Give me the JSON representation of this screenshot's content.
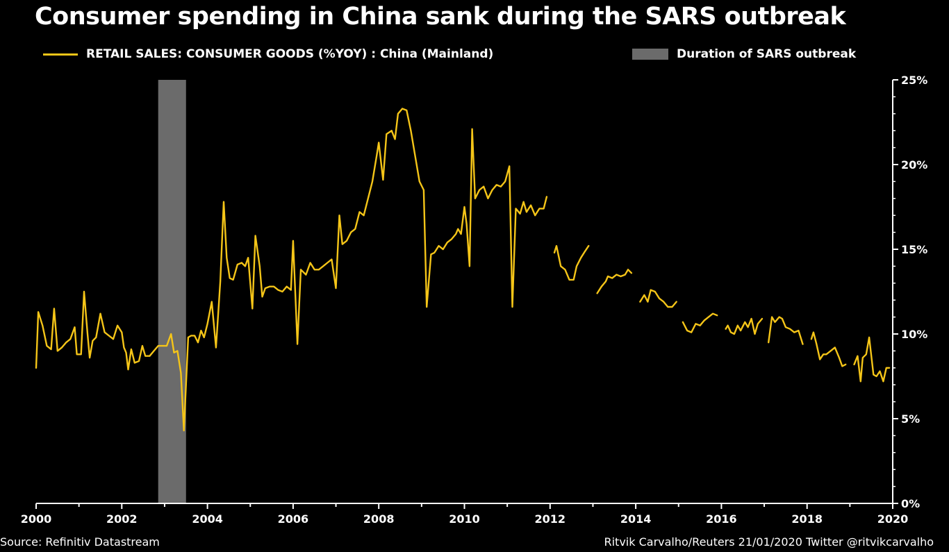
{
  "title": "Consumer spending in China sank during the SARS outbreak",
  "legend": {
    "series_label": "RETAIL SALES: CONSUMER GOODS (%YOY) : China (Mainland)",
    "shade_label": "Duration of SARS outbreak"
  },
  "footer": {
    "source": "Source: Refinitiv Datastream",
    "credit": "Ritvik Carvalho/Reuters 21/01/2020 Twitter @ritvikcarvalho"
  },
  "colors": {
    "line": "#f5c518",
    "shade": "#6b6b6b",
    "axis": "#ffffff",
    "background": "#000000"
  },
  "chart_data": {
    "type": "line",
    "x_label_ticks": [
      "2000",
      "2002",
      "2004",
      "2006",
      "2008",
      "2010",
      "2012",
      "2014",
      "2016",
      "2018",
      "2020"
    ],
    "y_tick_labels": [
      "0%",
      "5%",
      "10%",
      "15%",
      "20%",
      "25%"
    ],
    "xlim": [
      2000,
      2020
    ],
    "ylim": [
      0,
      25
    ],
    "shaded_region": {
      "label": "Duration of SARS outbreak",
      "x_start": 2002.85,
      "x_end": 2003.5
    },
    "series": [
      {
        "name": "RETAIL SALES: CONSUMER GOODS (%YOY) : China (Mainland)",
        "segments": [
          [
            [
              2000.0,
              8.0
            ],
            [
              2000.05,
              11.3
            ],
            [
              2000.15,
              10.5
            ],
            [
              2000.25,
              9.3
            ],
            [
              2000.35,
              9.1
            ],
            [
              2000.42,
              11.5
            ],
            [
              2000.5,
              9.0
            ],
            [
              2000.6,
              9.2
            ],
            [
              2000.7,
              9.5
            ],
            [
              2000.8,
              9.7
            ],
            [
              2000.9,
              10.4
            ],
            [
              2000.95,
              8.8
            ],
            [
              2001.05,
              8.8
            ],
            [
              2001.12,
              12.5
            ],
            [
              2001.2,
              10.0
            ],
            [
              2001.25,
              8.6
            ],
            [
              2001.32,
              9.6
            ],
            [
              2001.4,
              9.8
            ],
            [
              2001.5,
              11.2
            ],
            [
              2001.6,
              10.1
            ],
            [
              2001.7,
              9.9
            ],
            [
              2001.8,
              9.7
            ],
            [
              2001.9,
              10.5
            ],
            [
              2002.0,
              10.1
            ],
            [
              2002.05,
              9.2
            ],
            [
              2002.1,
              8.9
            ],
            [
              2002.15,
              7.9
            ],
            [
              2002.22,
              9.1
            ],
            [
              2002.3,
              8.3
            ],
            [
              2002.4,
              8.4
            ],
            [
              2002.48,
              9.3
            ],
            [
              2002.55,
              8.7
            ],
            [
              2002.65,
              8.7
            ],
            [
              2002.75,
              9.0
            ],
            [
              2002.85,
              9.3
            ],
            [
              2002.95,
              9.3
            ],
            [
              2003.05,
              9.3
            ],
            [
              2003.15,
              10.0
            ],
            [
              2003.22,
              8.9
            ],
            [
              2003.3,
              9.0
            ],
            [
              2003.38,
              7.7
            ],
            [
              2003.45,
              4.3
            ],
            [
              2003.55,
              9.8
            ],
            [
              2003.62,
              9.9
            ],
            [
              2003.7,
              9.9
            ],
            [
              2003.78,
              9.5
            ],
            [
              2003.85,
              10.2
            ],
            [
              2003.92,
              9.8
            ],
            [
              2004.0,
              10.6
            ],
            [
              2004.1,
              11.9
            ],
            [
              2004.2,
              9.2
            ],
            [
              2004.3,
              13.1
            ],
            [
              2004.38,
              17.8
            ],
            [
              2004.45,
              14.5
            ],
            [
              2004.52,
              13.3
            ],
            [
              2004.6,
              13.2
            ],
            [
              2004.7,
              14.1
            ],
            [
              2004.8,
              14.2
            ],
            [
              2004.88,
              14.0
            ],
            [
              2004.95,
              14.5
            ],
            [
              2005.05,
              11.5
            ],
            [
              2005.12,
              15.8
            ],
            [
              2005.22,
              14.0
            ],
            [
              2005.28,
              12.2
            ],
            [
              2005.35,
              12.7
            ],
            [
              2005.45,
              12.8
            ],
            [
              2005.55,
              12.8
            ],
            [
              2005.65,
              12.6
            ],
            [
              2005.75,
              12.5
            ],
            [
              2005.85,
              12.8
            ],
            [
              2005.95,
              12.6
            ],
            [
              2006.0,
              15.5
            ],
            [
              2006.1,
              9.4
            ],
            [
              2006.18,
              13.8
            ],
            [
              2006.3,
              13.5
            ],
            [
              2006.4,
              14.2
            ],
            [
              2006.5,
              13.8
            ],
            [
              2006.6,
              13.8
            ],
            [
              2006.7,
              14.0
            ],
            [
              2006.8,
              14.2
            ],
            [
              2006.9,
              14.4
            ],
            [
              2007.0,
              12.7
            ],
            [
              2007.08,
              17.0
            ],
            [
              2007.15,
              15.3
            ],
            [
              2007.25,
              15.5
            ],
            [
              2007.35,
              16.0
            ],
            [
              2007.45,
              16.2
            ],
            [
              2007.55,
              17.2
            ],
            [
              2007.65,
              17.0
            ],
            [
              2007.75,
              18.0
            ],
            [
              2007.85,
              19.0
            ],
            [
              2007.95,
              20.5
            ],
            [
              2008.0,
              21.3
            ],
            [
              2008.1,
              19.1
            ],
            [
              2008.18,
              21.8
            ],
            [
              2008.3,
              22.0
            ],
            [
              2008.38,
              21.5
            ],
            [
              2008.45,
              23.0
            ],
            [
              2008.55,
              23.3
            ],
            [
              2008.65,
              23.2
            ],
            [
              2008.75,
              22.0
            ],
            [
              2008.85,
              20.5
            ],
            [
              2008.95,
              19.0
            ],
            [
              2009.05,
              18.5
            ],
            [
              2009.12,
              11.6
            ],
            [
              2009.22,
              14.7
            ],
            [
              2009.3,
              14.8
            ],
            [
              2009.4,
              15.2
            ],
            [
              2009.5,
              15.0
            ],
            [
              2009.6,
              15.4
            ],
            [
              2009.7,
              15.6
            ],
            [
              2009.8,
              15.9
            ],
            [
              2009.85,
              16.2
            ],
            [
              2009.92,
              15.9
            ],
            [
              2010.0,
              17.5
            ],
            [
              2010.05,
              16.5
            ],
            [
              2010.12,
              14.0
            ],
            [
              2010.18,
              22.1
            ],
            [
              2010.25,
              18.0
            ],
            [
              2010.35,
              18.5
            ],
            [
              2010.45,
              18.7
            ],
            [
              2010.55,
              18.0
            ],
            [
              2010.65,
              18.5
            ],
            [
              2010.75,
              18.8
            ],
            [
              2010.85,
              18.7
            ],
            [
              2010.95,
              19.0
            ],
            [
              2011.05,
              19.9
            ],
            [
              2011.12,
              11.6
            ],
            [
              2011.2,
              17.4
            ],
            [
              2011.3,
              17.1
            ],
            [
              2011.38,
              17.8
            ],
            [
              2011.45,
              17.2
            ],
            [
              2011.55,
              17.6
            ],
            [
              2011.65,
              17.0
            ],
            [
              2011.75,
              17.4
            ],
            [
              2011.85,
              17.4
            ],
            [
              2011.92,
              18.1
            ]
          ],
          [
            [
              2012.1,
              14.8
            ],
            [
              2012.15,
              15.2
            ],
            [
              2012.25,
              14.0
            ],
            [
              2012.35,
              13.8
            ],
            [
              2012.45,
              13.2
            ],
            [
              2012.55,
              13.2
            ],
            [
              2012.62,
              14.0
            ],
            [
              2012.72,
              14.5
            ],
            [
              2012.82,
              14.9
            ],
            [
              2012.9,
              15.2
            ]
          ],
          [
            [
              2013.1,
              12.4
            ],
            [
              2013.2,
              12.8
            ],
            [
              2013.3,
              13.1
            ],
            [
              2013.35,
              13.4
            ],
            [
              2013.45,
              13.3
            ],
            [
              2013.55,
              13.5
            ],
            [
              2013.65,
              13.4
            ],
            [
              2013.75,
              13.5
            ],
            [
              2013.82,
              13.8
            ],
            [
              2013.9,
              13.6
            ]
          ],
          [
            [
              2014.1,
              11.9
            ],
            [
              2014.2,
              12.3
            ],
            [
              2014.28,
              11.9
            ],
            [
              2014.35,
              12.6
            ],
            [
              2014.45,
              12.5
            ],
            [
              2014.55,
              12.1
            ],
            [
              2014.65,
              11.9
            ],
            [
              2014.75,
              11.6
            ],
            [
              2014.85,
              11.6
            ],
            [
              2014.95,
              11.9
            ]
          ],
          [
            [
              2015.1,
              10.7
            ],
            [
              2015.2,
              10.2
            ],
            [
              2015.3,
              10.1
            ],
            [
              2015.4,
              10.6
            ],
            [
              2015.5,
              10.5
            ],
            [
              2015.6,
              10.8
            ],
            [
              2015.7,
              11.0
            ],
            [
              2015.8,
              11.2
            ],
            [
              2015.9,
              11.1
            ]
          ],
          [
            [
              2016.1,
              10.3
            ],
            [
              2016.15,
              10.5
            ],
            [
              2016.22,
              10.1
            ],
            [
              2016.3,
              10.0
            ],
            [
              2016.38,
              10.5
            ],
            [
              2016.45,
              10.2
            ],
            [
              2016.55,
              10.7
            ],
            [
              2016.62,
              10.4
            ],
            [
              2016.7,
              10.9
            ],
            [
              2016.78,
              10.0
            ],
            [
              2016.85,
              10.6
            ],
            [
              2016.95,
              10.9
            ]
          ],
          [
            [
              2017.1,
              9.5
            ],
            [
              2017.18,
              11.0
            ],
            [
              2017.25,
              10.7
            ],
            [
              2017.35,
              11.0
            ],
            [
              2017.42,
              10.9
            ],
            [
              2017.5,
              10.4
            ],
            [
              2017.6,
              10.3
            ],
            [
              2017.7,
              10.1
            ],
            [
              2017.8,
              10.2
            ],
            [
              2017.9,
              9.4
            ]
          ],
          [
            [
              2018.1,
              9.7
            ],
            [
              2018.15,
              10.1
            ],
            [
              2018.22,
              9.4
            ],
            [
              2018.3,
              8.5
            ],
            [
              2018.38,
              8.8
            ],
            [
              2018.45,
              8.8
            ],
            [
              2018.55,
              9.0
            ],
            [
              2018.65,
              9.2
            ],
            [
              2018.75,
              8.6
            ],
            [
              2018.82,
              8.1
            ],
            [
              2018.9,
              8.2
            ]
          ],
          [
            [
              2019.1,
              8.2
            ],
            [
              2019.18,
              8.7
            ],
            [
              2019.25,
              7.2
            ],
            [
              2019.3,
              8.6
            ],
            [
              2019.38,
              8.8
            ],
            [
              2019.45,
              9.8
            ],
            [
              2019.55,
              7.6
            ],
            [
              2019.62,
              7.5
            ],
            [
              2019.7,
              7.8
            ],
            [
              2019.78,
              7.2
            ],
            [
              2019.85,
              8.0
            ],
            [
              2019.92,
              8.0
            ]
          ]
        ]
      }
    ]
  }
}
